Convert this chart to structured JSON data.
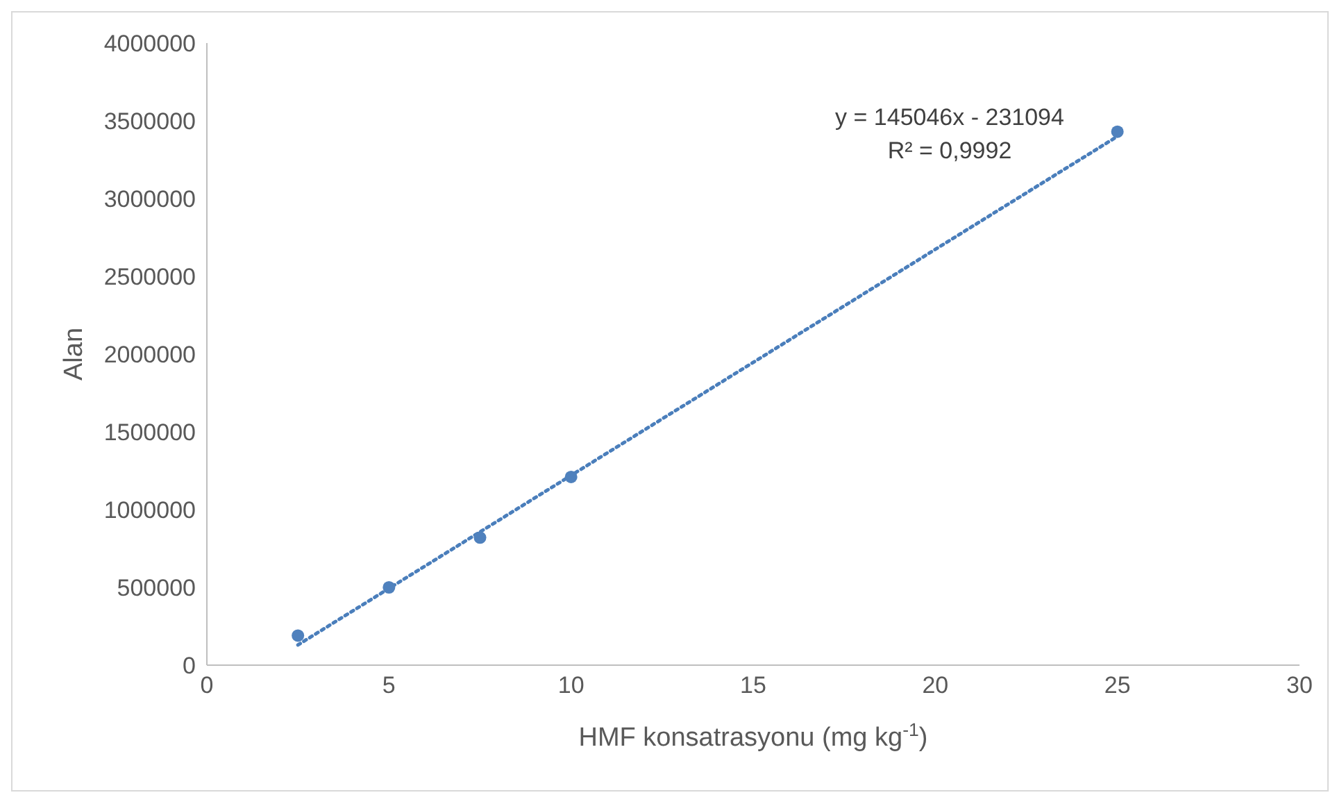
{
  "chart_data": {
    "type": "scatter",
    "xlabel": "HMF konsatrasyonu (mg kg$^{-1}$)",
    "ylabel": "Alan",
    "xlim": [
      0,
      30
    ],
    "xticks": [
      0,
      5,
      10,
      15,
      20,
      25,
      30
    ],
    "ylim": [
      0,
      4000000
    ],
    "yticks": [
      0,
      500000,
      1000000,
      1500000,
      2000000,
      2500000,
      3000000,
      3500000,
      4000000
    ],
    "grid": false,
    "legend": false,
    "series": [
      {
        "type": "scatter",
        "color": "#4f81bd",
        "marker": "circle",
        "x": [
          2.5,
          5,
          7.5,
          10,
          25
        ],
        "values": [
          190000,
          500000,
          820000,
          1210000,
          3430000
        ]
      },
      {
        "type": "line",
        "color": "#4a7ebb",
        "marker": "none",
        "line_style": "dotted",
        "x": [
          2.5,
          25
        ],
        "values": [
          130000,
          3400000
        ]
      }
    ],
    "annotations": [
      "y = 145046x - 231094",
      "R² = 0,9992"
    ]
  }
}
